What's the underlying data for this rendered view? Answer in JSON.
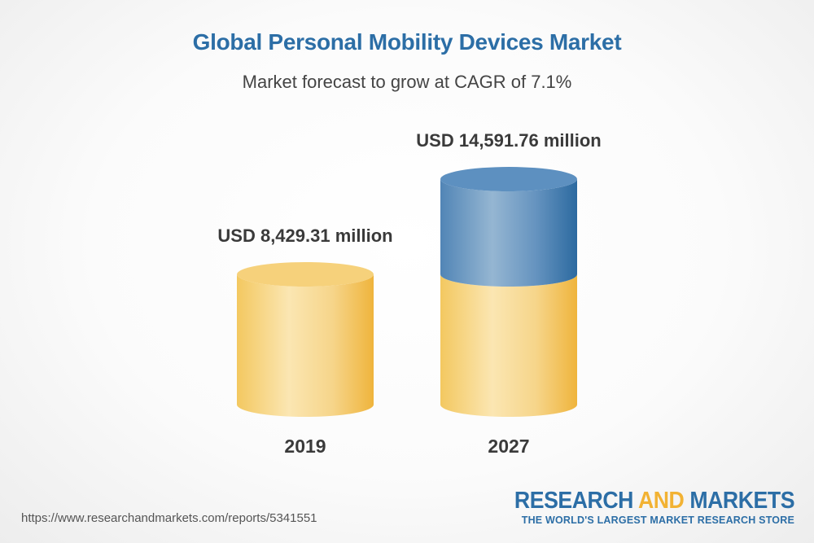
{
  "title": "Global Personal Mobility Devices Market",
  "subtitle": "Market forecast to grow at CAGR of 7.1%",
  "source_url": "https://www.researchandmarkets.com/reports/5341551",
  "brand": {
    "name_part1": "RESEARCH",
    "name_part2": "AND",
    "name_part3": "MARKETS",
    "tagline": "THE WORLD'S LARGEST MARKET RESEARCH STORE"
  },
  "colors": {
    "base_cylinder": "#f2c45a",
    "growth_cylinder": "#4a85b8",
    "title": "#2c6ea6",
    "brand_accent": "#f2b233"
  },
  "chart_data": {
    "type": "bar",
    "style": "3d-cylinder",
    "title": "Global Personal Mobility Devices Market",
    "subtitle": "Market forecast to grow at CAGR of 7.1%",
    "categories": [
      "2019",
      "2027"
    ],
    "values": [
      8429.31,
      14591.76
    ],
    "unit": "USD million",
    "data_labels": [
      "USD 8,429.31 million",
      "USD 14,591.76 million"
    ],
    "xlabel": "",
    "ylabel": "",
    "ylim": [
      0,
      16000
    ],
    "grid": false,
    "legend": "none"
  }
}
